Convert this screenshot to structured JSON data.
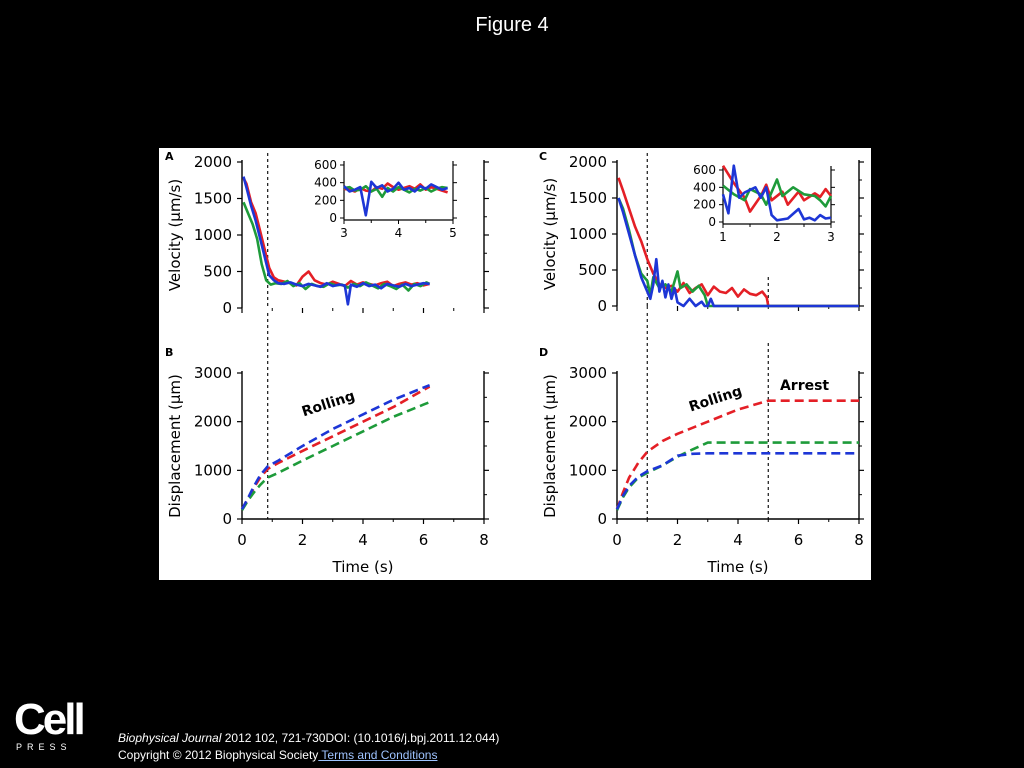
{
  "slide": {
    "title": "Figure 4"
  },
  "footer": {
    "journal": "Biophysical Journal",
    "citation_rest": " 2012 102, 721-730DOI: (10.1016/j.bpj.2011.12.044)",
    "copyright": "Copyright © 2012 Biophysical Society",
    "terms_link": " Terms and Conditions",
    "logo_top": "Cell",
    "logo_bottom": "PRESS"
  },
  "colors": {
    "red": "#e41f26",
    "green": "#1e9b3a",
    "blue": "#1d36d6"
  },
  "chart_data": [
    {
      "panel": "A",
      "type": "line",
      "xlabel": "",
      "ylabel": "Velocity (μm/s)",
      "xlim": [
        0,
        8
      ],
      "ylim": [
        0,
        2000
      ],
      "yticks": [
        0,
        500,
        1000,
        1500,
        2000
      ],
      "vlines": [
        0.85
      ],
      "series": [
        {
          "color": "red",
          "x": [
            0.05,
            0.15,
            0.3,
            0.45,
            0.6,
            0.75,
            0.9,
            1.05,
            1.2,
            1.4,
            1.6,
            1.8,
            2.0,
            2.2,
            2.4,
            2.6,
            2.8,
            3.0,
            3.2,
            3.4,
            3.6,
            3.8,
            4.0,
            4.2,
            4.4,
            4.6,
            4.8,
            5.0,
            5.2,
            5.4,
            5.6,
            5.8,
            6.0,
            6.2
          ],
          "y": [
            1780,
            1700,
            1450,
            1300,
            1050,
            800,
            550,
            420,
            380,
            360,
            340,
            310,
            430,
            500,
            380,
            340,
            320,
            360,
            330,
            300,
            370,
            320,
            350,
            330,
            310,
            340,
            360,
            300,
            330,
            350,
            320,
            340,
            310,
            330
          ]
        },
        {
          "color": "green",
          "x": [
            0.05,
            0.2,
            0.35,
            0.5,
            0.65,
            0.8,
            0.95,
            1.1,
            1.3,
            1.5,
            1.7,
            1.9,
            2.1,
            2.3,
            2.5,
            2.7,
            2.9,
            3.1,
            3.3,
            3.5,
            3.7,
            3.9,
            4.1,
            4.3,
            4.5,
            4.7,
            4.9,
            5.1,
            5.3,
            5.5,
            5.7,
            5.9,
            6.1,
            6.2
          ],
          "y": [
            1450,
            1300,
            1150,
            950,
            600,
            380,
            320,
            340,
            330,
            370,
            300,
            340,
            260,
            330,
            300,
            290,
            340,
            310,
            320,
            280,
            330,
            300,
            350,
            310,
            270,
            330,
            300,
            260,
            320,
            240,
            330,
            300,
            350,
            330
          ]
        },
        {
          "color": "blue",
          "x": [
            0.05,
            0.15,
            0.3,
            0.45,
            0.6,
            0.75,
            0.9,
            1.05,
            1.2,
            1.4,
            1.6,
            1.8,
            2.0,
            2.2,
            2.4,
            2.6,
            2.8,
            3.0,
            3.2,
            3.4,
            3.5,
            3.6,
            3.8,
            4.0,
            4.2,
            4.4,
            4.6,
            4.8,
            5.0,
            5.2,
            5.4,
            5.6,
            5.8,
            6.0,
            6.2
          ],
          "y": [
            1800,
            1650,
            1400,
            1200,
            950,
            700,
            450,
            380,
            340,
            330,
            350,
            320,
            300,
            330,
            310,
            290,
            340,
            300,
            320,
            310,
            50,
            320,
            290,
            340,
            300,
            320,
            270,
            330,
            310,
            290,
            330,
            300,
            320,
            340,
            330
          ]
        }
      ],
      "inset": {
        "xlim": [
          3,
          5
        ],
        "ylim": [
          0,
          600
        ],
        "xticks": [
          3,
          4,
          5
        ],
        "yticks": [
          0,
          200,
          400,
          600
        ],
        "series": [
          {
            "color": "red",
            "x": [
              3.0,
              3.1,
              3.2,
              3.3,
              3.4,
              3.5,
              3.6,
              3.7,
              3.8,
              3.9,
              4.0,
              4.1,
              4.2,
              4.3,
              4.4,
              4.5,
              4.6,
              4.7,
              4.8,
              4.9
            ],
            "y": [
              330,
              320,
              300,
              340,
              310,
              300,
              350,
              330,
              390,
              350,
              320,
              340,
              360,
              330,
              380,
              320,
              350,
              330,
              310,
              290
            ]
          },
          {
            "color": "green",
            "x": [
              3.0,
              3.1,
              3.2,
              3.3,
              3.4,
              3.5,
              3.6,
              3.7,
              3.8,
              3.9,
              4.0,
              4.1,
              4.2,
              4.3,
              4.4,
              4.5,
              4.6,
              4.7,
              4.8,
              4.9
            ],
            "y": [
              340,
              350,
              310,
              320,
              360,
              300,
              330,
              240,
              340,
              300,
              350,
              320,
              290,
              330,
              310,
              340,
              300,
              330,
              350,
              340
            ]
          },
          {
            "color": "blue",
            "x": [
              3.0,
              3.1,
              3.2,
              3.3,
              3.4,
              3.5,
              3.6,
              3.7,
              3.8,
              3.9,
              4.0,
              4.1,
              4.2,
              4.3,
              4.4,
              4.5,
              4.6,
              4.7,
              4.8,
              4.9
            ],
            "y": [
              360,
              300,
              320,
              350,
              30,
              410,
              340,
              370,
              300,
              330,
              400,
              320,
              340,
              300,
              360,
              330,
              380,
              350,
              320,
              340
            ]
          }
        ]
      }
    },
    {
      "panel": "C",
      "type": "line",
      "xlabel": "",
      "ylabel": "Velocity (μm/s)",
      "xlim": [
        0,
        8
      ],
      "ylim": [
        0,
        2000
      ],
      "yticks": [
        0,
        500,
        1000,
        1500,
        2000
      ],
      "vlines": [
        1.0,
        5.0
      ],
      "series": [
        {
          "color": "red",
          "x": [
            0.05,
            0.2,
            0.4,
            0.6,
            0.8,
            1.0,
            1.2,
            1.4,
            1.6,
            1.8,
            2.0,
            2.2,
            2.4,
            2.6,
            2.8,
            3.0,
            3.2,
            3.4,
            3.6,
            3.8,
            4.0,
            4.2,
            4.4,
            4.6,
            4.8,
            4.95,
            5.0,
            8.0
          ],
          "y": [
            1780,
            1600,
            1350,
            1100,
            900,
            650,
            450,
            300,
            250,
            280,
            200,
            320,
            180,
            250,
            300,
            150,
            270,
            200,
            180,
            250,
            130,
            230,
            170,
            150,
            200,
            120,
            0,
            0
          ]
        },
        {
          "color": "green",
          "x": [
            0.05,
            0.2,
            0.4,
            0.6,
            0.8,
            1.0,
            1.1,
            1.2,
            1.4,
            1.6,
            1.8,
            2.0,
            2.1,
            2.3,
            2.5,
            2.7,
            2.9,
            3.0,
            8.0
          ],
          "y": [
            1500,
            1350,
            1050,
            700,
            450,
            350,
            150,
            400,
            250,
            300,
            200,
            480,
            250,
            300,
            200,
            280,
            150,
            0,
            0
          ]
        },
        {
          "color": "blue",
          "x": [
            0.05,
            0.2,
            0.4,
            0.6,
            0.8,
            1.0,
            1.1,
            1.2,
            1.3,
            1.4,
            1.5,
            1.6,
            1.7,
            1.8,
            1.9,
            2.0,
            2.2,
            2.4,
            2.6,
            2.8,
            2.9,
            3.0,
            3.1,
            3.2,
            3.4,
            3.6,
            3.8,
            4.0,
            8.0
          ],
          "y": [
            1500,
            1300,
            1000,
            700,
            400,
            200,
            100,
            300,
            650,
            200,
            350,
            120,
            300,
            100,
            250,
            50,
            0,
            100,
            0,
            60,
            0,
            0,
            100,
            0,
            0,
            0,
            0,
            0,
            0
          ]
        }
      ],
      "inset": {
        "xlim": [
          1,
          3
        ],
        "ylim": [
          0,
          600
        ],
        "xticks": [
          1,
          2,
          3
        ],
        "yticks": [
          0,
          200,
          400,
          600
        ],
        "series": [
          {
            "color": "red",
            "x": [
              1.0,
              1.2,
              1.4,
              1.5,
              1.7,
              1.8,
              1.9,
              2.1,
              2.2,
              2.4,
              2.5,
              2.7,
              2.8,
              2.9,
              3.0
            ],
            "y": [
              650,
              450,
              280,
              120,
              300,
              430,
              250,
              350,
              200,
              350,
              250,
              330,
              290,
              380,
              300
            ]
          },
          {
            "color": "green",
            "x": [
              1.0,
              1.2,
              1.4,
              1.5,
              1.7,
              1.8,
              2.0,
              2.1,
              2.3,
              2.5,
              2.7,
              2.8,
              2.9,
              3.0
            ],
            "y": [
              420,
              320,
              250,
              380,
              320,
              200,
              490,
              300,
              400,
              320,
              300,
              250,
              180,
              300
            ]
          },
          {
            "color": "blue",
            "x": [
              1.0,
              1.1,
              1.2,
              1.3,
              1.4,
              1.6,
              1.7,
              1.8,
              1.9,
              2.0,
              2.2,
              2.4,
              2.5,
              2.6,
              2.7,
              2.8,
              2.9,
              3.0
            ],
            "y": [
              320,
              100,
              650,
              280,
              340,
              400,
              280,
              400,
              80,
              20,
              40,
              150,
              30,
              50,
              20,
              80,
              40,
              50
            ]
          }
        ]
      }
    },
    {
      "panel": "B",
      "type": "line",
      "xlabel": "Time (s)",
      "ylabel": "Displacement (μm)",
      "xlim": [
        0,
        8
      ],
      "ylim": [
        0,
        3000
      ],
      "xticks": [
        0,
        2,
        4,
        6,
        8
      ],
      "yticks": [
        0,
        1000,
        2000,
        3000
      ],
      "vlines": [
        0.85
      ],
      "annotations": [
        {
          "text": "Rolling",
          "x": 2.9,
          "y": 2280,
          "rotate": -18
        }
      ],
      "series": [
        {
          "color": "red",
          "dashed": true,
          "x": [
            0,
            0.2,
            0.4,
            0.6,
            0.85,
            1.2,
            2,
            3,
            4,
            5,
            6,
            6.2
          ],
          "y": [
            200,
            420,
            650,
            850,
            1030,
            1150,
            1400,
            1700,
            2000,
            2300,
            2650,
            2720
          ]
        },
        {
          "color": "green",
          "dashed": true,
          "x": [
            0,
            0.2,
            0.4,
            0.6,
            0.85,
            1.2,
            2,
            3,
            4,
            5,
            6,
            6.2
          ],
          "y": [
            180,
            380,
            550,
            700,
            850,
            950,
            1200,
            1500,
            1800,
            2100,
            2350,
            2400
          ]
        },
        {
          "color": "blue",
          "dashed": true,
          "x": [
            0,
            0.2,
            0.4,
            0.6,
            0.85,
            1.2,
            2,
            3,
            4,
            5,
            6,
            6.2
          ],
          "y": [
            200,
            430,
            680,
            900,
            1080,
            1200,
            1500,
            1850,
            2150,
            2450,
            2700,
            2750
          ]
        }
      ]
    },
    {
      "panel": "D",
      "type": "line",
      "xlabel": "Time (s)",
      "ylabel": "Displacement (μm)",
      "xlim": [
        0,
        8
      ],
      "ylim": [
        0,
        3000
      ],
      "xticks": [
        0,
        2,
        4,
        6,
        8
      ],
      "yticks": [
        0,
        1000,
        2000,
        3000
      ],
      "vlines": [
        1.0,
        5.0
      ],
      "annotations": [
        {
          "text": "Rolling",
          "x": 3.3,
          "y": 2380,
          "rotate": -18
        },
        {
          "text": "Arrest",
          "x": 6.2,
          "y": 2650,
          "rotate": 0
        }
      ],
      "series": [
        {
          "color": "red",
          "dashed": true,
          "x": [
            0,
            0.2,
            0.4,
            0.7,
            1.0,
            1.5,
            2,
            3,
            4,
            5,
            8
          ],
          "y": [
            200,
            550,
            850,
            1150,
            1380,
            1600,
            1750,
            2000,
            2250,
            2430,
            2430
          ]
        },
        {
          "color": "green",
          "dashed": true,
          "x": [
            0,
            0.2,
            0.4,
            0.7,
            1.0,
            1.5,
            2,
            2.5,
            3,
            8
          ],
          "y": [
            180,
            450,
            650,
            850,
            950,
            1100,
            1280,
            1430,
            1570,
            1570
          ]
        },
        {
          "color": "blue",
          "dashed": true,
          "x": [
            0,
            0.2,
            0.4,
            0.7,
            1.0,
            1.5,
            2,
            2.5,
            3,
            8
          ],
          "y": [
            200,
            480,
            680,
            870,
            980,
            1100,
            1300,
            1340,
            1350,
            1350
          ]
        }
      ]
    }
  ],
  "panel_letters": {
    "A": "A",
    "B": "B",
    "C": "C",
    "D": "D"
  }
}
